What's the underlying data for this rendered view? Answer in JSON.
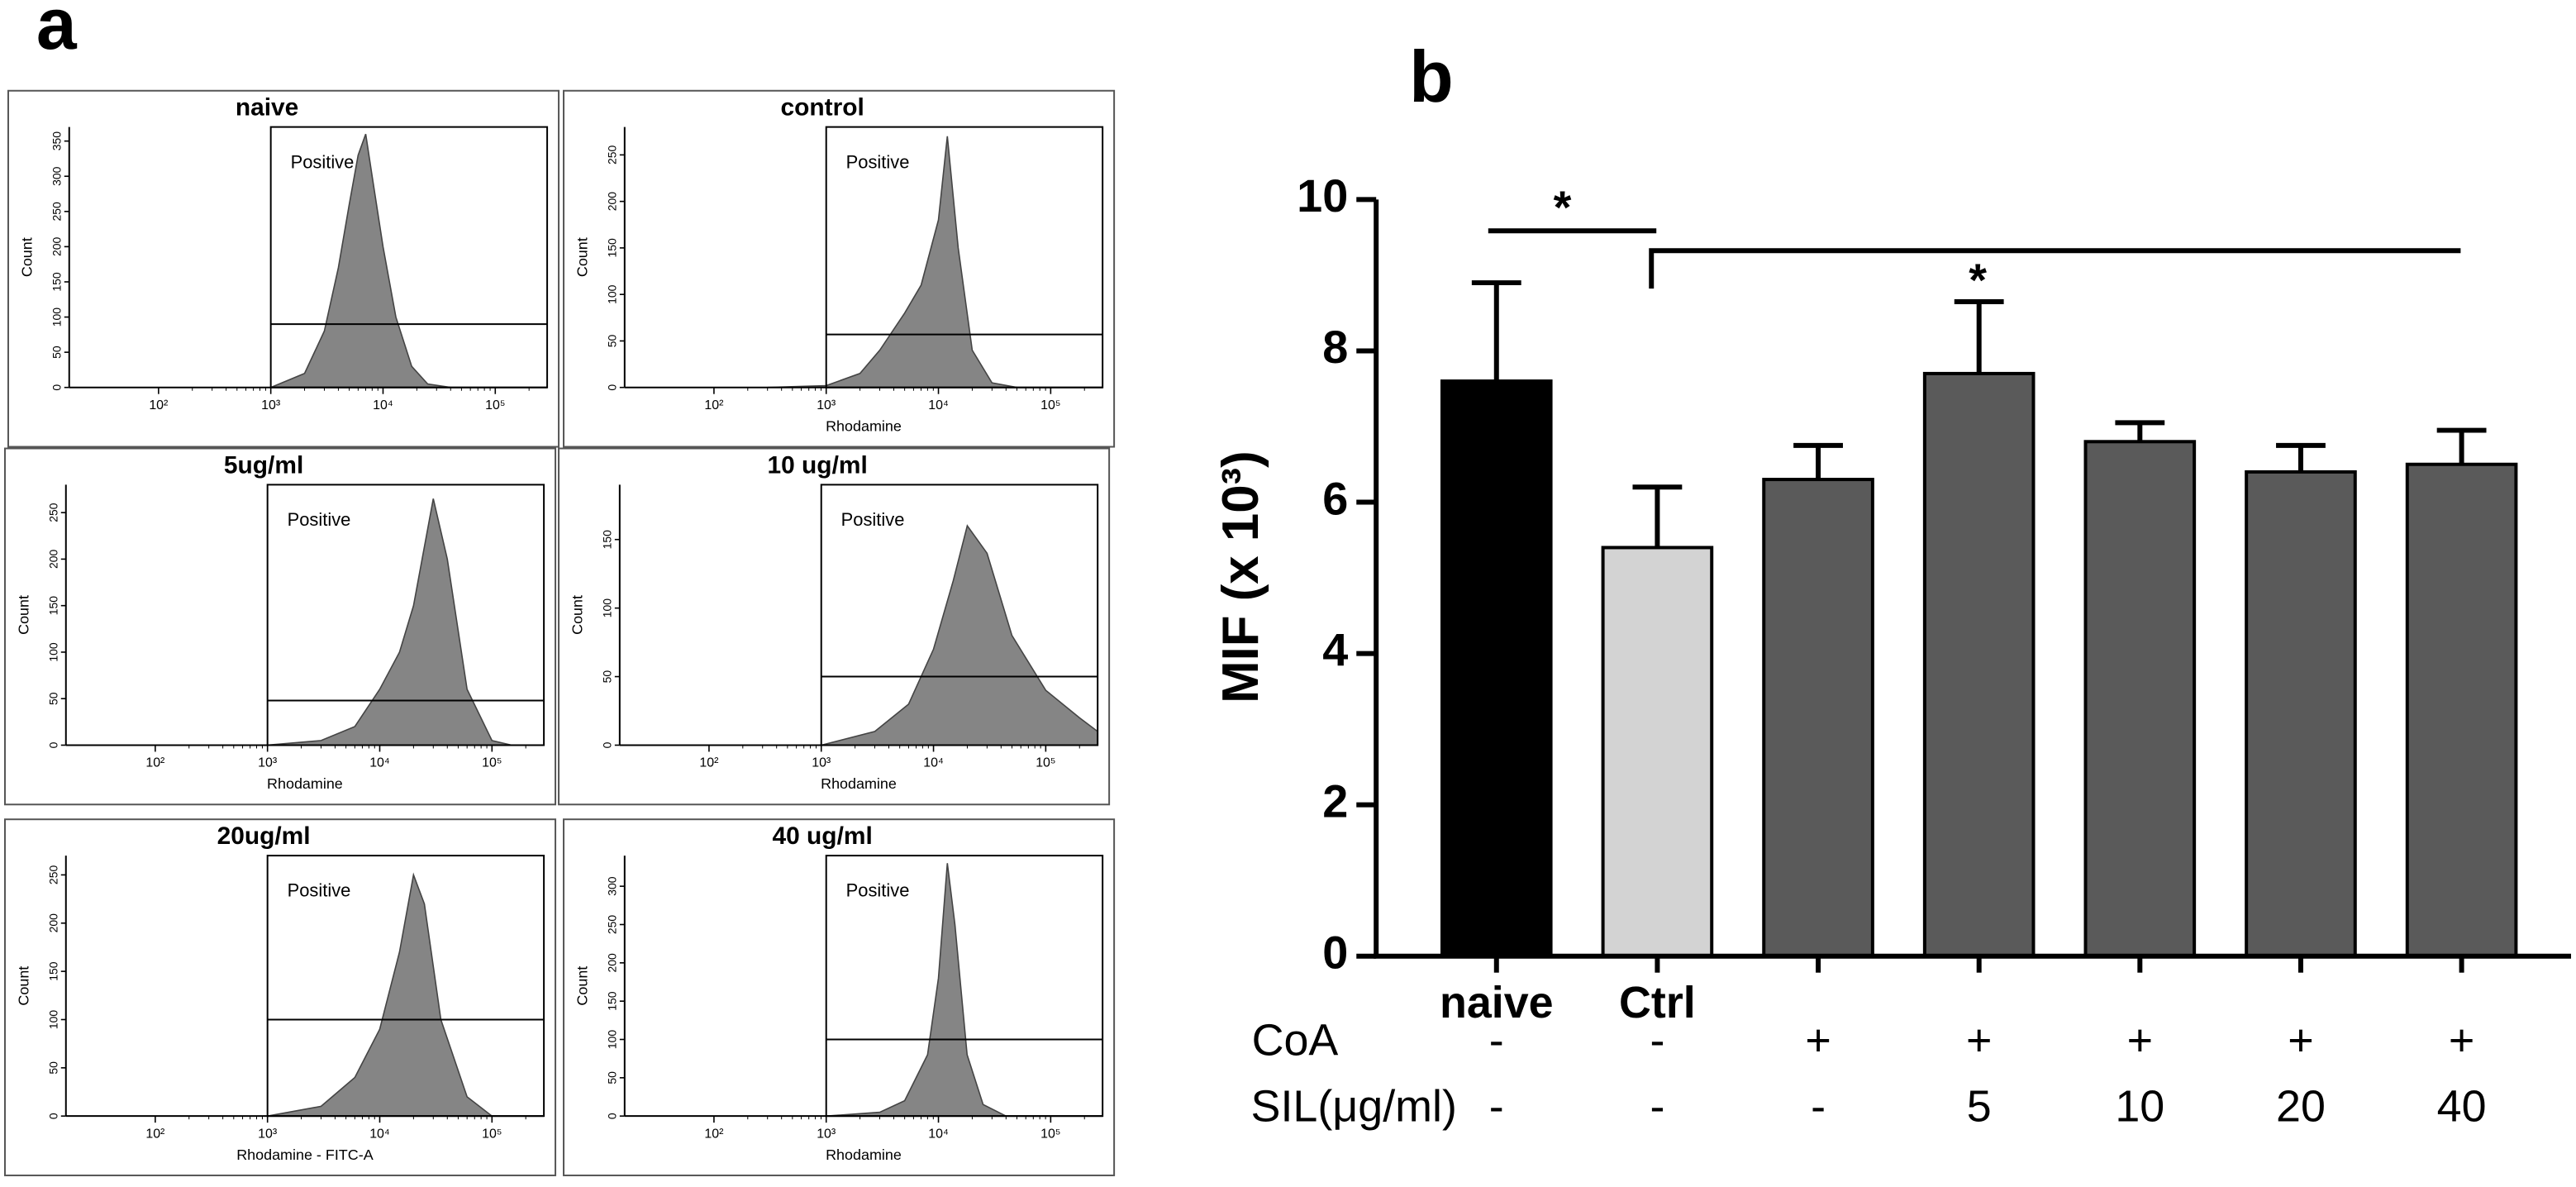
{
  "panel_labels": [
    "a",
    "b"
  ],
  "chart_data": [
    {
      "type": "area",
      "title": "naive",
      "ylabel": "Count",
      "gate_label": "Positive",
      "color": "#858585",
      "xscale": "log",
      "x": [
        1000,
        2000,
        3000,
        4000,
        5000,
        6000,
        7000,
        8000,
        10000,
        13000,
        18000,
        25000,
        40000
      ],
      "values": [
        0,
        20,
        80,
        170,
        260,
        330,
        360,
        300,
        200,
        100,
        30,
        5,
        0
      ],
      "xlim": [
        16,
        290000
      ],
      "xticks": [
        {
          "value": 100,
          "label": "10²"
        },
        {
          "value": 1000,
          "label": "10³"
        },
        {
          "value": 10000,
          "label": "10⁴"
        },
        {
          "value": 100000,
          "label": "10⁵"
        }
      ],
      "ylim": [
        0,
        370
      ],
      "yticks": [
        0,
        50,
        100,
        150,
        200,
        250,
        300,
        350
      ],
      "gate_x": 1000,
      "gate_y": 90
    },
    {
      "type": "area",
      "title": "control",
      "xlabel": "Rhodamine",
      "ylabel": "Count",
      "gate_label": "Positive",
      "color": "#858585",
      "xscale": "log",
      "x": [
        300,
        1000,
        2000,
        3000,
        5000,
        7000,
        10000,
        12000,
        15000,
        20000,
        30000,
        50000
      ],
      "values": [
        0,
        2,
        15,
        40,
        80,
        110,
        180,
        270,
        150,
        40,
        5,
        0
      ],
      "xlim": [
        16,
        290000
      ],
      "xticks": [
        {
          "value": 100,
          "label": "10²"
        },
        {
          "value": 1000,
          "label": "10³"
        },
        {
          "value": 10000,
          "label": "10⁴"
        },
        {
          "value": 100000,
          "label": "10⁵"
        }
      ],
      "ylim": [
        0,
        280
      ],
      "yticks": [
        0,
        50,
        100,
        150,
        200,
        250
      ],
      "gate_x": 1000,
      "gate_y": 57
    },
    {
      "type": "area",
      "title": "5ug/ml",
      "xlabel": "Rhodamine",
      "ylabel": "Count",
      "gate_label": "Positive",
      "color": "#858585",
      "xscale": "log",
      "x": [
        1000,
        3000,
        6000,
        10000,
        15000,
        20000,
        30000,
        40000,
        60000,
        100000,
        150000
      ],
      "values": [
        0,
        5,
        20,
        60,
        100,
        150,
        265,
        200,
        60,
        5,
        0
      ],
      "xlim": [
        16,
        290000
      ],
      "xticks": [
        {
          "value": 100,
          "label": "10²"
        },
        {
          "value": 1000,
          "label": "10³"
        },
        {
          "value": 10000,
          "label": "10⁴"
        },
        {
          "value": 100000,
          "label": "10⁵"
        }
      ],
      "ylim": [
        0,
        280
      ],
      "yticks": [
        0,
        50,
        100,
        150,
        200,
        250
      ],
      "gate_x": 1000,
      "gate_y": 48
    },
    {
      "type": "area",
      "title": "10 ug/ml",
      "xlabel": "Rhodamine",
      "ylabel": "Count",
      "gate_label": "Positive",
      "color": "#858585",
      "xscale": "log",
      "x": [
        1000,
        3000,
        6000,
        10000,
        15000,
        20000,
        30000,
        50000,
        100000,
        200000,
        290000
      ],
      "values": [
        0,
        10,
        30,
        70,
        120,
        160,
        140,
        80,
        40,
        20,
        10
      ],
      "xlim": [
        16,
        290000
      ],
      "xticks": [
        {
          "value": 100,
          "label": "10²"
        },
        {
          "value": 1000,
          "label": "10³"
        },
        {
          "value": 10000,
          "label": "10⁴"
        },
        {
          "value": 100000,
          "label": "10⁵"
        }
      ],
      "ylim": [
        0,
        190
      ],
      "yticks": [
        0,
        50,
        100,
        150
      ],
      "gate_x": 1000,
      "gate_y": 50
    },
    {
      "type": "area",
      "title": "20ug/ml",
      "xlabel": "Rhodamine - FITC-A",
      "ylabel": "Count",
      "gate_label": "Positive",
      "color": "#858585",
      "xscale": "log",
      "x": [
        1000,
        3000,
        6000,
        10000,
        15000,
        20000,
        25000,
        35000,
        60000,
        100000
      ],
      "values": [
        0,
        10,
        40,
        90,
        170,
        250,
        220,
        100,
        20,
        0
      ],
      "xlim": [
        16,
        290000
      ],
      "xticks": [
        {
          "value": 100,
          "label": "10²"
        },
        {
          "value": 1000,
          "label": "10³"
        },
        {
          "value": 10000,
          "label": "10⁴"
        },
        {
          "value": 100000,
          "label": "10⁵"
        }
      ],
      "ylim": [
        0,
        270
      ],
      "yticks": [
        0,
        50,
        100,
        150,
        200,
        250
      ],
      "gate_x": 1000,
      "gate_y": 100
    },
    {
      "type": "area",
      "title": "40 ug/ml",
      "xlabel": "Rhodamine",
      "ylabel": "Count",
      "gate_label": "Positive",
      "color": "#858585",
      "xscale": "log",
      "x": [
        1000,
        3000,
        5000,
        8000,
        10000,
        12000,
        14000,
        18000,
        25000,
        40000
      ],
      "values": [
        0,
        5,
        20,
        80,
        180,
        330,
        250,
        80,
        15,
        0
      ],
      "xlim": [
        16,
        290000
      ],
      "xticks": [
        {
          "value": 100,
          "label": "10²"
        },
        {
          "value": 1000,
          "label": "10³"
        },
        {
          "value": 10000,
          "label": "10⁴"
        },
        {
          "value": 100000,
          "label": "10⁵"
        }
      ],
      "ylim": [
        0,
        340
      ],
      "yticks": [
        0,
        50,
        100,
        150,
        200,
        250,
        300
      ],
      "gate_x": 1000,
      "gate_y": 100
    },
    {
      "type": "bar",
      "ylabel": "MIF (x 10³)",
      "categories": [
        "naive",
        "Ctrl",
        null,
        null,
        null,
        null,
        null
      ],
      "values": [
        7.6,
        5.4,
        6.3,
        7.7,
        6.8,
        6.4,
        6.5
      ],
      "errors": [
        1.3,
        0.8,
        0.45,
        0.95,
        0.25,
        0.35,
        0.45
      ],
      "colors": [
        "#000000",
        "#d3d3d3",
        "#5a5a5a",
        "#5a5a5a",
        "#5a5a5a",
        "#5a5a5a",
        "#5a5a5a"
      ],
      "ylim": [
        0,
        10
      ],
      "yticks": [
        0,
        2,
        4,
        6,
        8,
        10
      ],
      "rows": [
        {
          "name": "CoA",
          "values": [
            "-",
            "-",
            "+",
            "+",
            "+",
            "+",
            "+"
          ]
        },
        {
          "name": "SIL(μg/ml)",
          "values": [
            "-",
            "-",
            "-",
            "5",
            "10",
            "20",
            "40"
          ]
        }
      ],
      "annotations": [
        "*",
        "*"
      ]
    }
  ]
}
